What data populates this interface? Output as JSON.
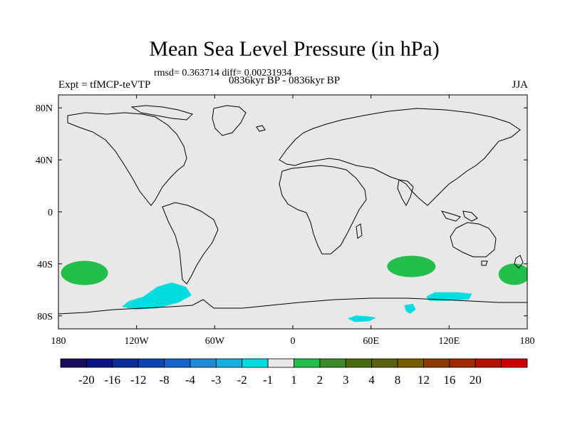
{
  "title": "Mean Sea Level Pressure (in hPa)",
  "stats": "rmsd= 0.363714  diff= 0.00231934",
  "left_label": "Expt = tfMCP-teVTP",
  "center_label": "0836kyr BP - 0836kyr BP",
  "right_label": "JJA",
  "chart_data": {
    "type": "heatmap",
    "title": "Mean Sea Level Pressure (in hPa)",
    "projection": "cylindrical equidistant",
    "xlim": [
      -180,
      180
    ],
    "ylim": [
      -90,
      90
    ],
    "x_ticks": [
      {
        "value": -180,
        "label": "180"
      },
      {
        "value": -120,
        "label": "120W"
      },
      {
        "value": -60,
        "label": "60W"
      },
      {
        "value": 0,
        "label": "0"
      },
      {
        "value": 60,
        "label": "60E"
      },
      {
        "value": 120,
        "label": "120E"
      },
      {
        "value": 180,
        "label": "180"
      }
    ],
    "y_ticks": [
      {
        "value": 80,
        "label": "80N"
      },
      {
        "value": 40,
        "label": "40N"
      },
      {
        "value": 0,
        "label": "0"
      },
      {
        "value": -40,
        "label": "40S"
      },
      {
        "value": -80,
        "label": "80S"
      }
    ],
    "background_color": "#e8e8e8",
    "colorbar": {
      "colors": [
        "#1a0a5e",
        "#0a1480",
        "#0a2d9a",
        "#0a46b2",
        "#1464c8",
        "#1e8ad6",
        "#16aede",
        "#00dce0",
        "#e8e8e8",
        "#22c04a",
        "#3a8a28",
        "#4a6a0e",
        "#5a6210",
        "#785a00",
        "#8c3a00",
        "#a02a00",
        "#b41000",
        "#c80000"
      ],
      "labels": [
        "-20",
        "-16",
        "-12",
        "-8",
        "-4",
        "-3",
        "-2",
        "-1",
        "1",
        "2",
        "3",
        "4",
        "8",
        "12",
        "16",
        "20"
      ]
    },
    "anomaly_regions": [
      {
        "name": "south-pacific-west-positive",
        "lon": -160,
        "lat": -47,
        "value": 2,
        "color": "#22c04a"
      },
      {
        "name": "south-pacific-negative",
        "lon": -104,
        "lat": -62,
        "value": -2,
        "color": "#00dce0"
      },
      {
        "name": "indian-ocean-positive",
        "lon": 91,
        "lat": -42,
        "value": 2,
        "color": "#22c04a"
      },
      {
        "name": "southern-ocean-indian-negative",
        "lon": 120,
        "lat": -64,
        "value": -2,
        "color": "#00dce0"
      },
      {
        "name": "antarctic-coast-negative-1",
        "lon": 53,
        "lat": -82,
        "value": -2,
        "color": "#00dce0"
      },
      {
        "name": "antarctic-coast-negative-2",
        "lon": 90,
        "lat": -74,
        "value": -2,
        "color": "#00dce0"
      },
      {
        "name": "tasman-positive",
        "lon": 170,
        "lat": -48,
        "value": 2,
        "color": "#22c04a"
      }
    ]
  }
}
